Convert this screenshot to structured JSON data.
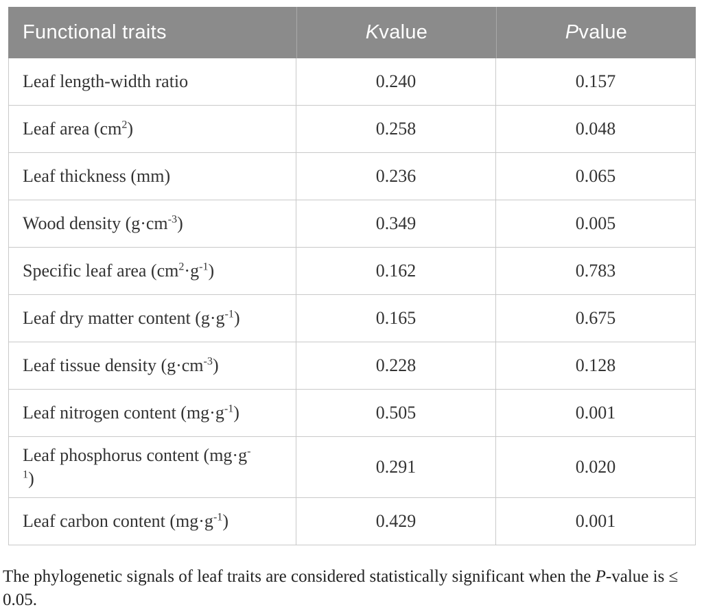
{
  "table": {
    "header": {
      "trait_label": "Functional traits",
      "k_italic": "K",
      "k_rest": " value",
      "p_italic": "P",
      "p_rest": " value"
    },
    "rows": [
      {
        "trait": [
          {
            "t": "Leaf length-width ratio"
          }
        ],
        "k": "0.240",
        "p": "0.157"
      },
      {
        "trait": [
          {
            "t": "Leaf area (cm"
          },
          {
            "sup": "2"
          },
          {
            "t": ")"
          }
        ],
        "k": "0.258",
        "p": "0.048"
      },
      {
        "trait": [
          {
            "t": "Leaf thickness (mm)"
          }
        ],
        "k": "0.236",
        "p": "0.065"
      },
      {
        "trait": [
          {
            "t": "Wood density (g·cm"
          },
          {
            "sup": "-3"
          },
          {
            "t": ")"
          }
        ],
        "k": "0.349",
        "p": "0.005"
      },
      {
        "trait": [
          {
            "t": "Specific leaf area (cm"
          },
          {
            "sup": "2"
          },
          {
            "t": "·g"
          },
          {
            "sup": "-1"
          },
          {
            "t": ")"
          }
        ],
        "k": "0.162",
        "p": "0.783"
      },
      {
        "trait": [
          {
            "t": "Leaf dry matter content (g·g"
          },
          {
            "sup": "-1"
          },
          {
            "t": ")"
          }
        ],
        "k": "0.165",
        "p": "0.675"
      },
      {
        "trait": [
          {
            "t": "Leaf tissue density (g·cm"
          },
          {
            "sup": "-3"
          },
          {
            "t": ")"
          }
        ],
        "k": "0.228",
        "p": "0.128"
      },
      {
        "trait": [
          {
            "t": "Leaf nitrogen content (mg·g"
          },
          {
            "sup": "-1"
          },
          {
            "t": ")"
          }
        ],
        "k": "0.505",
        "p": "0.001"
      },
      {
        "trait": [
          {
            "t": "Leaf phosphorus content (mg·g"
          },
          {
            "sup": "-"
          },
          {
            "br": true
          },
          {
            "sup": "1"
          },
          {
            "t": ")"
          }
        ],
        "k": "0.291",
        "p": "0.020"
      },
      {
        "trait": [
          {
            "t": "Leaf carbon content (mg·g"
          },
          {
            "sup": "-1"
          },
          {
            "t": ")"
          }
        ],
        "k": "0.429",
        "p": "0.001"
      }
    ]
  },
  "footnote": {
    "before_italic": "The phylogenetic signals of leaf traits are considered statistically significant when the ",
    "italic": "P",
    "after_italic": "-value is ≤ 0.05."
  },
  "colors": {
    "header_bg": "#8b8b8b",
    "header_text": "#ffffff",
    "header_divider": "#a9a9a9",
    "body_border": "#c9c9c9",
    "body_text": "#333333"
  }
}
